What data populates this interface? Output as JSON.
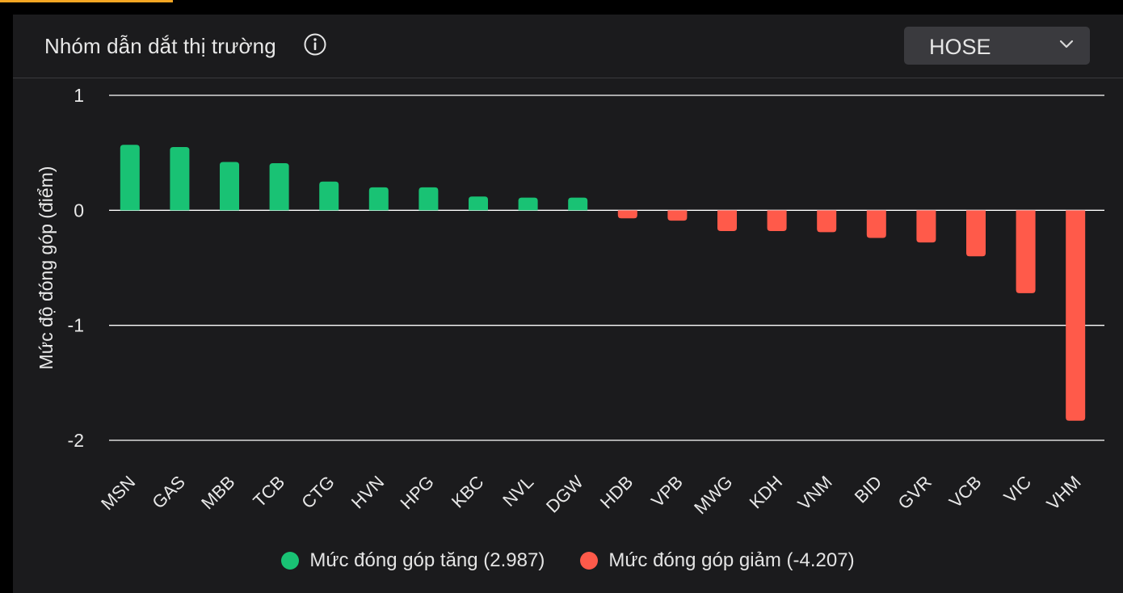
{
  "panel": {
    "title": "Nhóm dẫn dắt thị trường",
    "info_icon": "info-circle-icon",
    "exchange_select": {
      "value": "HOSE",
      "icon": "chevron-down-icon"
    }
  },
  "colors": {
    "positive": "#19c274",
    "negative": "#ff5a4a",
    "background": "#1b1b1d",
    "grid": "#ffffff"
  },
  "chart_data": {
    "type": "bar",
    "title": "",
    "ylabel": "Mức độ đóng góp (điểm)",
    "xlabel": "",
    "ylim": [
      -2,
      1
    ],
    "yticks": [
      1,
      0,
      -1,
      -2
    ],
    "ytick_labels": [
      "1",
      "0",
      "-1",
      "-2"
    ],
    "grid": true,
    "legend_position": "bottom",
    "categories": [
      "MSN",
      "GAS",
      "MBB",
      "TCB",
      "CTG",
      "HVN",
      "HPG",
      "KBC",
      "NVL",
      "DGW",
      "HDB",
      "VPB",
      "MWG",
      "KDH",
      "VNM",
      "BID",
      "GVR",
      "VCB",
      "VIC",
      "VHM"
    ],
    "values": [
      0.57,
      0.55,
      0.42,
      0.41,
      0.25,
      0.2,
      0.2,
      0.12,
      0.11,
      0.11,
      -0.07,
      -0.09,
      -0.18,
      -0.18,
      -0.19,
      -0.24,
      -0.28,
      -0.4,
      -0.72,
      -1.83
    ],
    "series": [
      {
        "name": "Mức đóng góp tăng (2.987)",
        "color": "#19c274"
      },
      {
        "name": "Mức đóng góp giảm (-4.207)",
        "color": "#ff5a4a"
      }
    ]
  }
}
